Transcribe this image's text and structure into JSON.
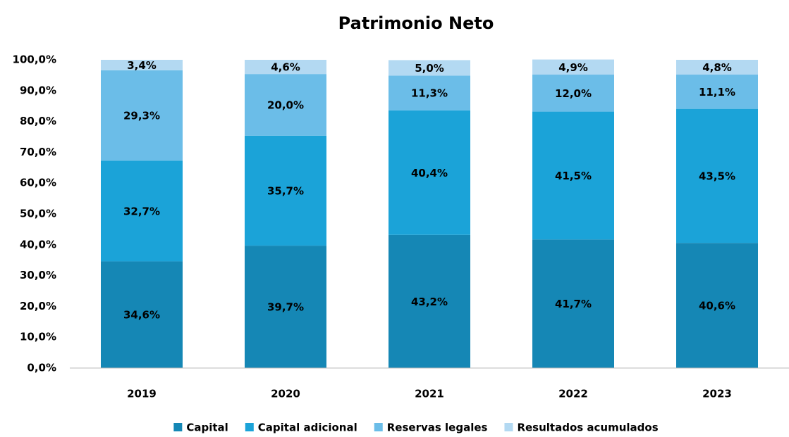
{
  "chart_data": {
    "type": "stacked_bar",
    "title": "Patrimonio Neto",
    "categories": [
      "2019",
      "2020",
      "2021",
      "2022",
      "2023"
    ],
    "series": [
      {
        "name": "Capital",
        "color": "#1587b5",
        "values": [
          34.6,
          39.7,
          43.2,
          41.7,
          40.6
        ],
        "value_labels": [
          "34,6%",
          "39,7%",
          "43,2%",
          "41,7%",
          "40,6%"
        ]
      },
      {
        "name": "Capital adicional",
        "color": "#1ba3d8",
        "values": [
          32.7,
          35.7,
          40.4,
          41.5,
          43.5
        ],
        "value_labels": [
          "32,7%",
          "35,7%",
          "40,4%",
          "41,5%",
          "43,5%"
        ]
      },
      {
        "name": "Reservas legales",
        "color": "#6bbde8",
        "values": [
          29.3,
          20.0,
          11.3,
          12.0,
          11.1
        ],
        "value_labels": [
          "29,3%",
          "20,0%",
          "11,3%",
          "12,0%",
          "11,1%"
        ]
      },
      {
        "name": "Resultados acumulados",
        "color": "#b3d9f2",
        "values": [
          3.4,
          4.6,
          5.0,
          4.9,
          4.8
        ],
        "value_labels": [
          "3,4%",
          "4,6%",
          "5,0%",
          "4,9%",
          "4,8%"
        ]
      }
    ],
    "ylim": [
      0,
      100
    ],
    "yticks": [
      {
        "value": 0,
        "label": "0,0%"
      },
      {
        "value": 10,
        "label": "10,0%"
      },
      {
        "value": 20,
        "label": "20,0%"
      },
      {
        "value": 30,
        "label": "30,0%"
      },
      {
        "value": 40,
        "label": "40,0%"
      },
      {
        "value": 50,
        "label": "50,0%"
      },
      {
        "value": 60,
        "label": "60,0%"
      },
      {
        "value": 70,
        "label": "70,0%"
      },
      {
        "value": 80,
        "label": "80,0%"
      },
      {
        "value": 90,
        "label": "90,0%"
      },
      {
        "value": 100,
        "label": "100,0%"
      }
    ],
    "grid": false,
    "legend": "bottom"
  }
}
